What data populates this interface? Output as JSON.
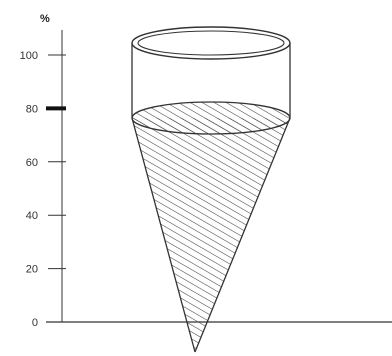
{
  "axis": {
    "unit": "%",
    "ticks": [
      {
        "label": "100",
        "value": 100
      },
      {
        "label": "80",
        "value": 80
      },
      {
        "label": "60",
        "value": 60
      },
      {
        "label": "40",
        "value": 40
      },
      {
        "label": "20",
        "value": 20
      },
      {
        "label": "0",
        "value": 0
      }
    ],
    "highlighted_value": 80
  },
  "fill": {
    "level_percent": 80
  },
  "colors": {
    "line": "#333333",
    "hatch": "#444444",
    "marker": "#111111"
  }
}
